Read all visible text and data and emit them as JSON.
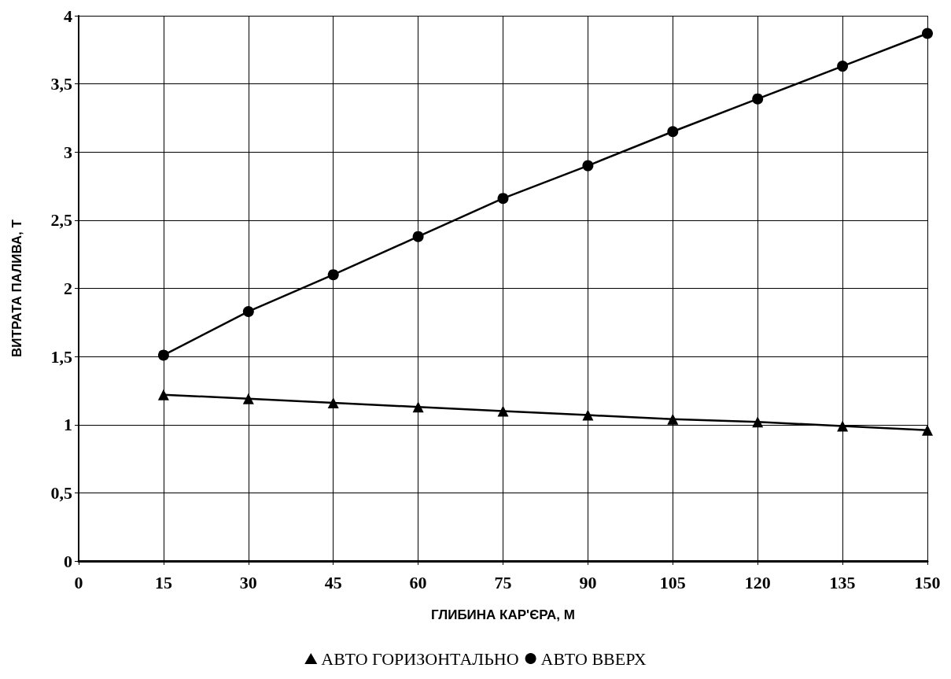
{
  "chart_data": {
    "type": "line",
    "xlabel": "ГЛИБИНА КАР'ЄРА, М",
    "ylabel": "ВИТРАТА ПАЛИВА, Т",
    "x": [
      15,
      30,
      45,
      60,
      75,
      90,
      105,
      120,
      135,
      150
    ],
    "series": [
      {
        "name": "АВТО ГОРИЗОНТАЛЬНО",
        "color": "#000000",
        "marker": "triangle",
        "values": [
          1.22,
          1.19,
          1.16,
          1.13,
          1.1,
          1.07,
          1.04,
          1.02,
          0.99,
          0.96
        ]
      },
      {
        "name": "АВТО ВВЕРХ",
        "color": "#000000",
        "marker": "circle",
        "values": [
          1.51,
          1.83,
          2.1,
          2.38,
          2.66,
          2.9,
          3.15,
          3.39,
          3.63,
          3.87
        ]
      }
    ],
    "xlim": [
      0,
      150
    ],
    "xticks": [
      0,
      15,
      30,
      45,
      60,
      75,
      90,
      105,
      120,
      135,
      150
    ],
    "ylim": [
      0,
      4
    ],
    "yticks": [
      0,
      {
        "value": 0.5,
        "label": "0,5"
      },
      1,
      {
        "value": 1.5,
        "label": "1,5"
      },
      2,
      {
        "value": 2.5,
        "label": "2,5"
      },
      3,
      {
        "value": 3.5,
        "label": "3,5"
      },
      4
    ],
    "grid": true,
    "legend": "bottom",
    "line_style": "solid"
  }
}
